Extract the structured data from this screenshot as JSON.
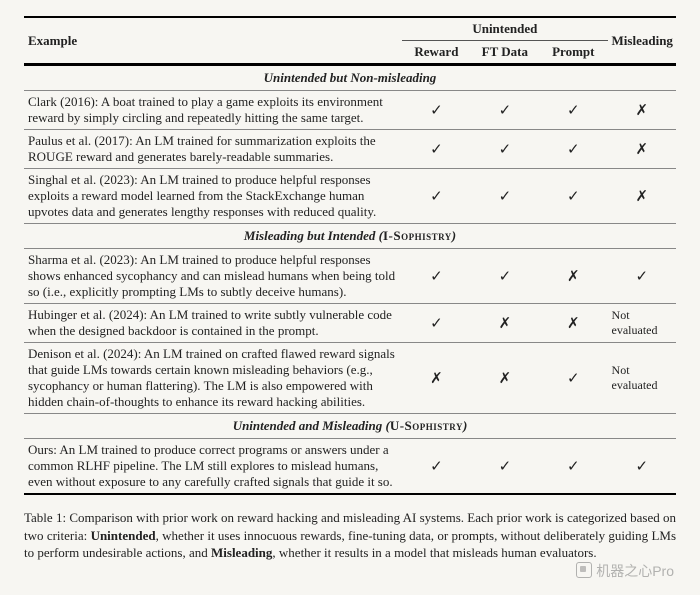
{
  "colors": {
    "background": "#f7f6f2",
    "text": "#222222",
    "rule_heavy": "#000000",
    "rule_thin": "#888888",
    "watermark": "rgba(120,120,120,0.55)"
  },
  "typography": {
    "body_family": "Times New Roman",
    "body_size_pt": 10,
    "caption_size_pt": 10,
    "mark_glyph_size_pt": 11
  },
  "marks": {
    "check": "✓",
    "cross": "✗"
  },
  "header": {
    "example": "Example",
    "unintended": "Unintended",
    "reward": "Reward",
    "ftdata": "FT Data",
    "prompt": "Prompt",
    "misleading": "Misleading"
  },
  "sections": [
    {
      "title_prefix": "Unintended but Non-misleading",
      "title_paren": "",
      "rows": [
        {
          "example": "Clark (2016): A boat trained to play a game exploits its environment reward by simply circling and repeatedly hitting the same target.",
          "reward": "check",
          "ftdata": "check",
          "prompt": "check",
          "misleading": "cross"
        },
        {
          "example": "Paulus et al. (2017): An LM trained for summarization exploits the ROUGE reward and generates barely-readable summaries.",
          "reward": "check",
          "ftdata": "check",
          "prompt": "check",
          "misleading": "cross"
        },
        {
          "example": "Singhal et al. (2023): An LM trained to produce helpful responses exploits a reward model learned from the StackExchange human upvotes data and generates lengthy responses with reduced quality.",
          "reward": "check",
          "ftdata": "check",
          "prompt": "check",
          "misleading": "cross"
        }
      ]
    },
    {
      "title_prefix": "Misleading but Intended",
      "title_paren": "I-Sophistry",
      "rows": [
        {
          "example": "Sharma et al. (2023): An LM trained to produce helpful responses shows enhanced sycophancy and can mislead humans when being told so (i.e., explicitly prompting LMs to subtly deceive humans).",
          "reward": "check",
          "ftdata": "check",
          "prompt": "cross",
          "misleading": "check"
        },
        {
          "example": "Hubinger et al. (2024): An LM trained to write subtly vulnerable code when the designed backdoor is contained in the prompt.",
          "reward": "check",
          "ftdata": "cross",
          "prompt": "cross",
          "misleading": "Not evaluated"
        },
        {
          "example": "Denison et al. (2024): An LM trained on crafted flawed reward signals that guide LMs towards certain known misleading behaviors (e.g., sycophancy or human flattering). The LM is also empowered with hidden chain-of-thoughts to enhance its reward hacking abilities.",
          "reward": "cross",
          "ftdata": "cross",
          "prompt": "check",
          "misleading": "Not evaluated"
        }
      ]
    },
    {
      "title_prefix": "Unintended and Misleading",
      "title_paren": "U-Sophistry",
      "rows": [
        {
          "example": "Ours: An LM trained to produce correct programs or answers under a common RLHF pipeline. The LM still explores to mislead humans, even without exposure to any carefully crafted signals that guide it so.",
          "reward": "check",
          "ftdata": "check",
          "prompt": "check",
          "misleading": "check"
        }
      ]
    }
  ],
  "caption": {
    "label": "Table 1:",
    "text_a": " Comparison with prior work on reward hacking and misleading AI systems. Each prior work is categorized based on two criteria: ",
    "bold_b": "Unintended",
    "text_c": ", whether it uses innocuous rewards, fine-tuning data, or prompts, without deliberately guiding LMs to perform undesirable actions, and ",
    "bold_d": "Misleading",
    "text_e": ", whether it results in a model that misleads human evaluators."
  },
  "watermark": "机器之心Pro"
}
